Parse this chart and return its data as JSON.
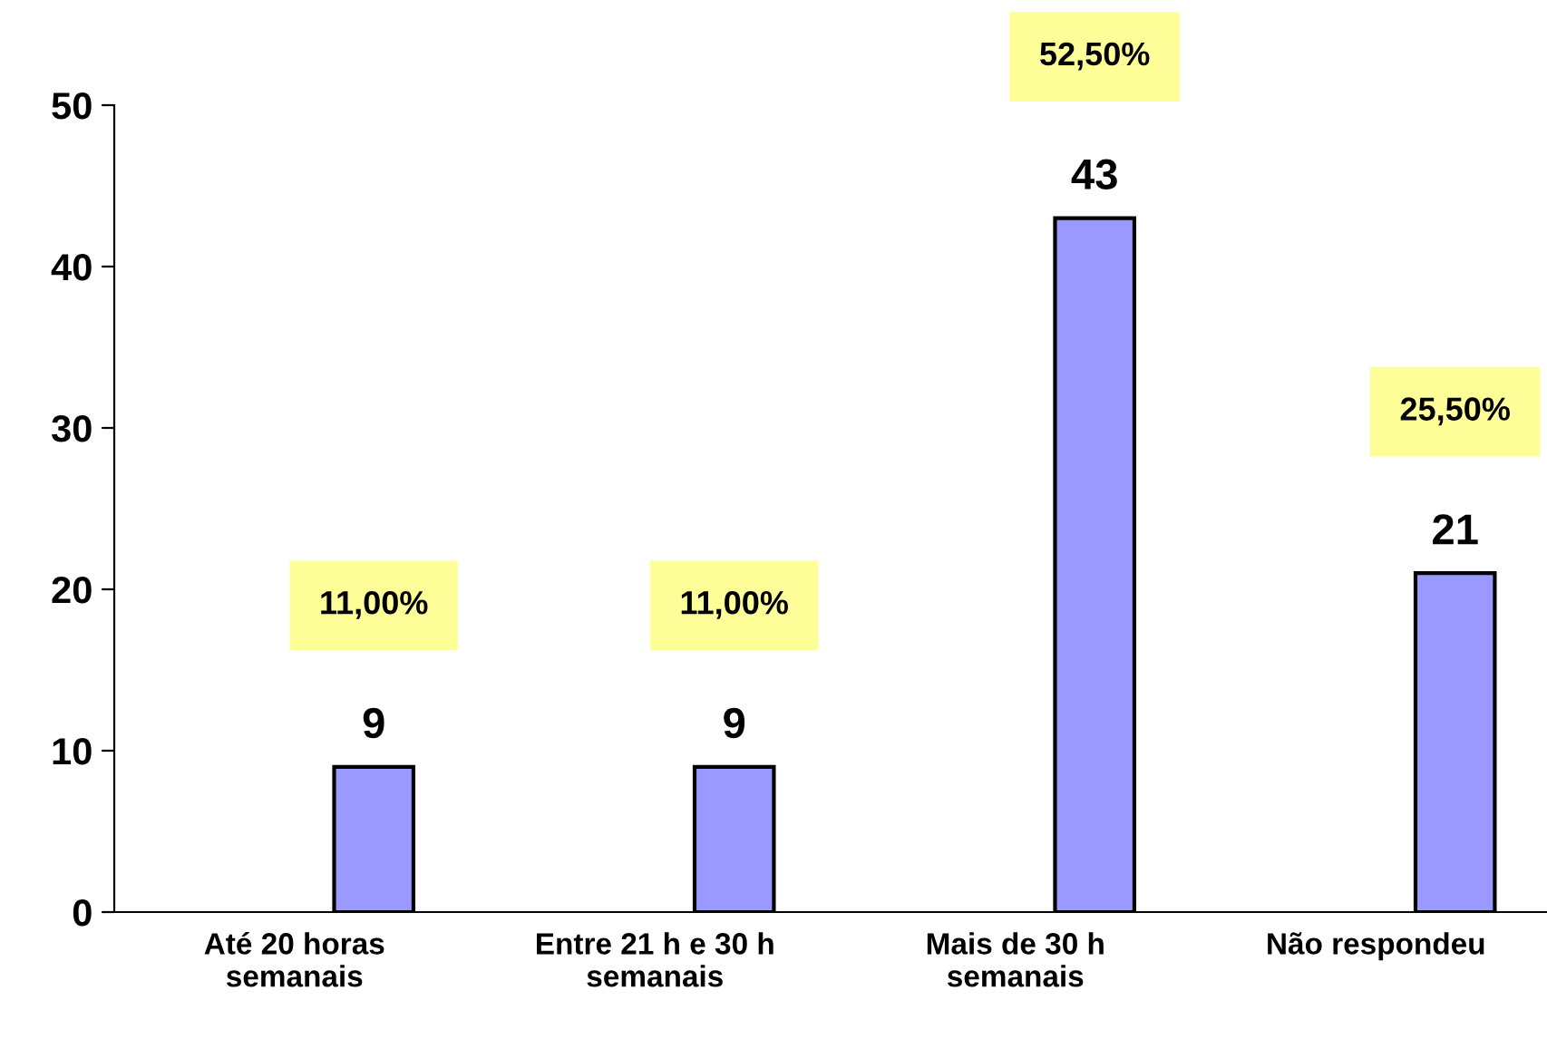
{
  "chart_data": {
    "type": "bar",
    "categories": [
      "Até 20 horas\nsemanais",
      "Entre 21 h e 30 h\nsemanais",
      "Mais de 30 h\nsemanais",
      "Não respondeu"
    ],
    "values": [
      9,
      9,
      43,
      21
    ],
    "color": "#9999ff",
    "ylim": [
      0,
      50
    ],
    "yticks": [
      0,
      10,
      20,
      30,
      40,
      50
    ],
    "grid": false,
    "data_labels": true,
    "annotations": [
      "11,00%",
      "11,00%",
      "52,50%",
      "25,50%"
    ]
  }
}
